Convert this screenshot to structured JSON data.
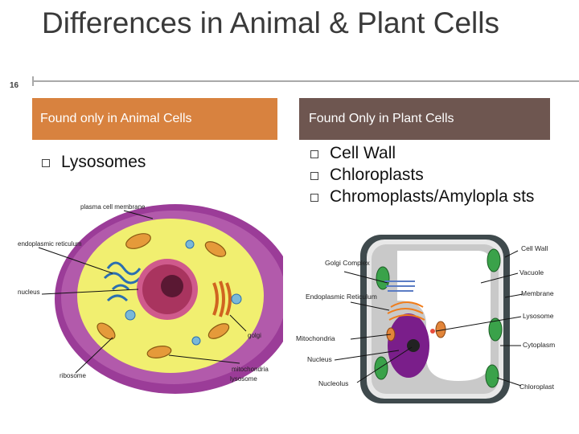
{
  "slide": {
    "number": "16",
    "title": "Differences in Animal & Plant Cells",
    "colors": {
      "left_header": "#d8823f",
      "right_header": "#6e5650",
      "rule": "#a9a9a9"
    }
  },
  "columns": {
    "left": {
      "header": "Found only in Animal Cells",
      "items": [
        "Lysosomes"
      ]
    },
    "right": {
      "header": "Found Only in Plant Cells",
      "items": [
        "Cell Wall",
        "Chloroplasts",
        "Chromoplasts/Amylopla sts"
      ]
    }
  },
  "animal_cell": {
    "labels": {
      "plasma_membrane": "plasma cell membrane",
      "endoplasmic": "endoplasmic reticulum",
      "nucleus": "nucleus",
      "golgi": "golgi",
      "mitochondria": "mitochondria",
      "lysosome": "lysosome",
      "ribosome": "ribosome"
    }
  },
  "plant_cell": {
    "labels": {
      "cell_wall": "Cell Wall",
      "vacuole": "Vacuole",
      "membrane": "Membrane",
      "lysosome": "Lysosome",
      "cytoplasm": "Cytoplasm",
      "chloroplast": "Chloroplast",
      "golgi": "Golgi Complex",
      "er": "Endoplasmic Reticulum",
      "mitochondria": "Mitochondria",
      "nucleus": "Nucleus",
      "nucleolus": "Nucleolus"
    }
  }
}
